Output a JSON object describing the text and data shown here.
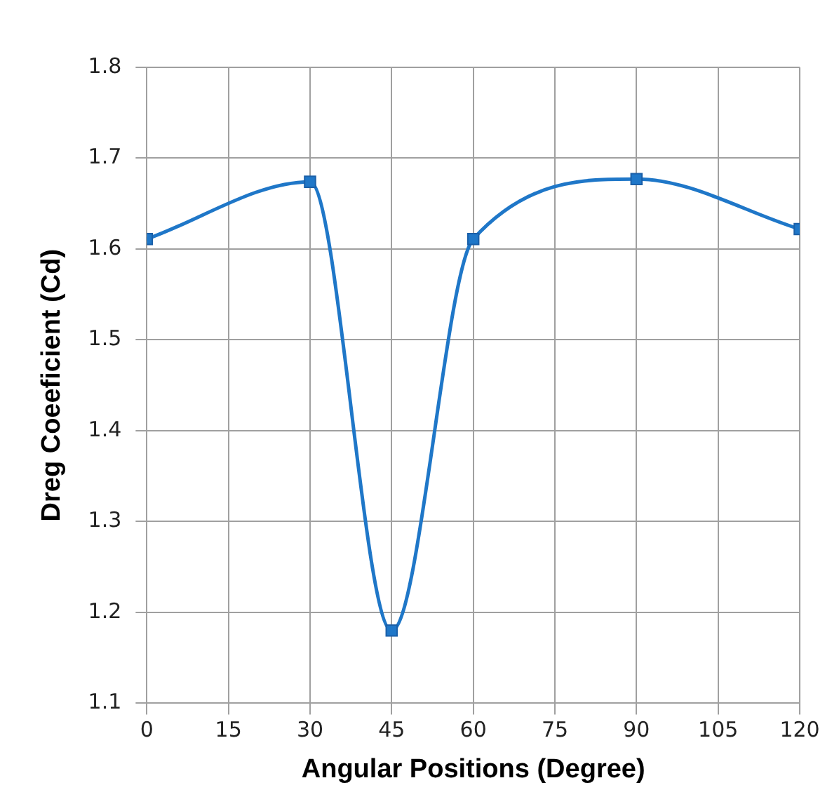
{
  "chart_data": {
    "type": "line",
    "xlabel": "Angular Positions (Degree)",
    "ylabel": "Dreg Coeeficient (Cd)",
    "x": [
      0,
      30,
      45,
      60,
      90,
      120
    ],
    "series": [
      {
        "color": "#1f77c8",
        "values": [
          1.611,
          1.674,
          1.18,
          1.611,
          1.677,
          1.622
        ]
      }
    ],
    "xlim": [
      0,
      120
    ],
    "xticks": [
      0,
      15,
      30,
      45,
      60,
      75,
      90,
      105,
      120
    ],
    "ylim": [
      1.1,
      1.8
    ],
    "yticks": [
      1.1,
      1.2,
      1.3,
      1.4,
      1.5,
      1.6,
      1.7,
      1.8
    ],
    "grid": true,
    "marker": "square",
    "line_style": "solid",
    "legend": false
  }
}
